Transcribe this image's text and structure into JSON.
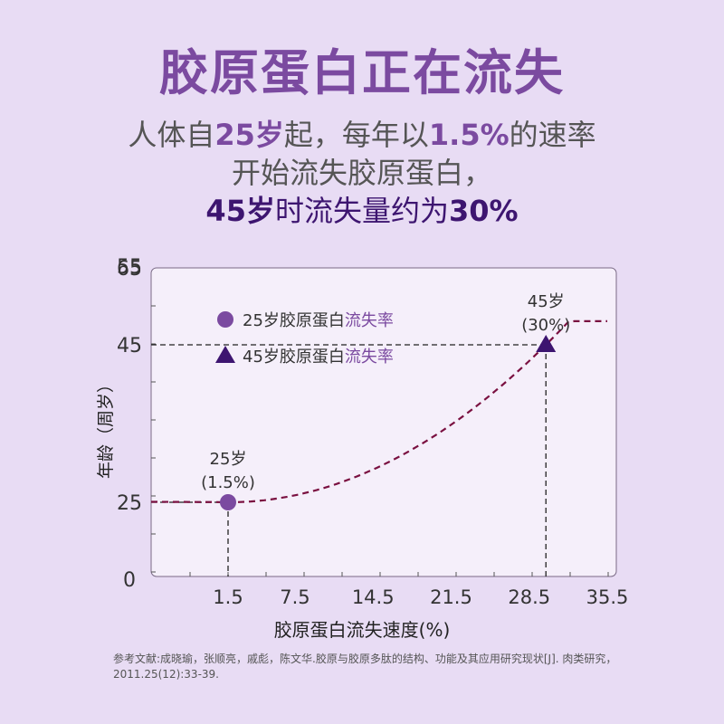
{
  "title": "胶原蛋白正在流失",
  "subtitle": {
    "l1_a": "人体自",
    "l1_b": "25岁",
    "l1_c": "起，每年以",
    "l1_d": "1.5%",
    "l1_e": "的速率",
    "l2": "开始流失胶原蛋白，",
    "l3_a": "45岁",
    "l3_b": "时流失量约为",
    "l3_c": "30%"
  },
  "chart_data": {
    "type": "line",
    "xlabel": "胶原蛋白流失速度(%)",
    "ylabel": "年龄（周岁）",
    "x_ticks": [
      "1.5",
      "7.5",
      "14.5",
      "21.5",
      "28.5",
      "35.5"
    ],
    "y_ticks": [
      "0",
      "25",
      "45",
      "55",
      "65"
    ],
    "legend": {
      "position": "top-left",
      "items": [
        {
          "marker": "circle",
          "prefix": "25岁胶原蛋白",
          "highlight": "流失率"
        },
        {
          "marker": "triangle",
          "prefix": "45岁胶原蛋白",
          "highlight": "流失率"
        }
      ]
    },
    "points": [
      {
        "x": 1.5,
        "y": 25,
        "label_top": "25岁",
        "label_bottom": "(1.5%)",
        "marker": "circle"
      },
      {
        "x": 30,
        "y": 45,
        "label_top": "45岁",
        "label_bottom": "(30%)",
        "marker": "triangle"
      }
    ],
    "curve": {
      "style": "dashed",
      "from": [
        0,
        25
      ],
      "to": [
        35.5,
        48
      ]
    },
    "colors": {
      "circle": "#7b4aa0",
      "triangle": "#3d1570",
      "curve": "#7a1040",
      "plot_bg": "#f5effa",
      "highlight": "#7b4aa0"
    }
  },
  "reference": "参考文献:成晓瑜，张顺亮，戚彪，陈文华.胶原与胶原多肽的结构、功能及其应用研究现状[J]. 肉类研究，2011.25(12):33-39."
}
